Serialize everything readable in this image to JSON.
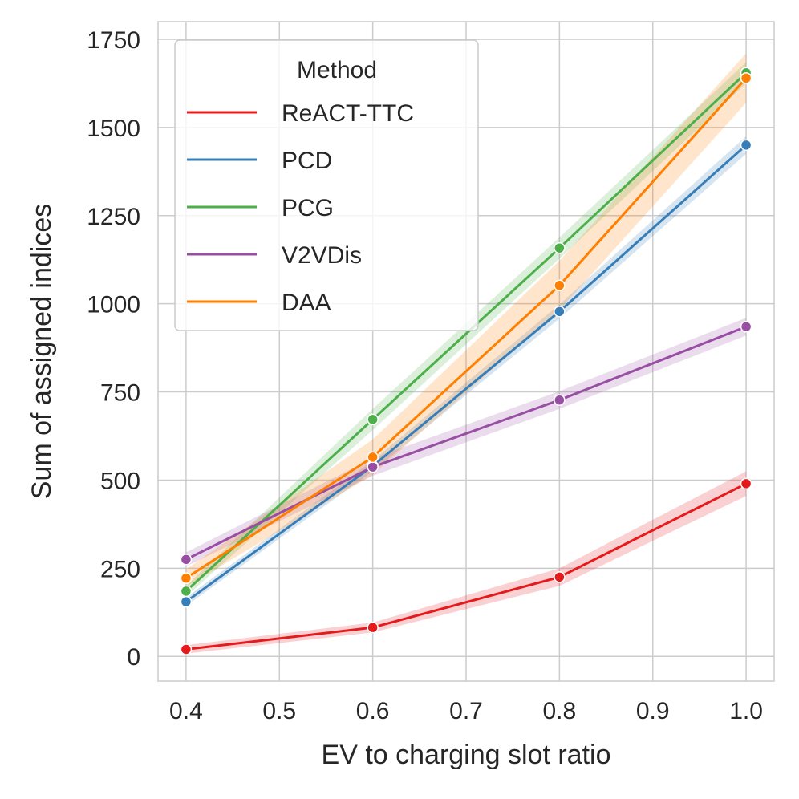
{
  "chart_data": {
    "type": "line",
    "xlabel": "EV to charging slot ratio",
    "ylabel": "Sum of assigned indices",
    "x": [
      0.4,
      0.6,
      0.8,
      1.0
    ],
    "xlim": [
      0.37,
      1.03
    ],
    "ylim": [
      -70,
      1800
    ],
    "x_ticks": [
      "0.4",
      "0.5",
      "0.6",
      "0.7",
      "0.8",
      "0.9",
      "1.0"
    ],
    "y_ticks": [
      "0",
      "250",
      "500",
      "750",
      "1000",
      "1250",
      "1500",
      "1750"
    ],
    "grid": true,
    "legend": {
      "title": "Method",
      "placement": "top-left"
    },
    "series": [
      {
        "name": "ReACT-TTC",
        "color": "#e41a1c",
        "values": [
          20,
          82,
          225,
          490
        ],
        "ci": [
          12,
          14,
          25,
          35
        ]
      },
      {
        "name": "PCD",
        "color": "#377eb8",
        "values": [
          155,
          540,
          978,
          1450
        ],
        "ci": [
          12,
          15,
          20,
          25
        ]
      },
      {
        "name": "PCG",
        "color": "#4daf4a",
        "values": [
          185,
          672,
          1158,
          1655
        ],
        "ci": [
          15,
          30,
          30,
          30
        ]
      },
      {
        "name": "V2VDis",
        "color": "#984ea3",
        "values": [
          275,
          537,
          727,
          935
        ],
        "ci": [
          20,
          25,
          25,
          25
        ]
      },
      {
        "name": "DAA",
        "color": "#ff7f00",
        "values": [
          222,
          565,
          1052,
          1640
        ],
        "ci": [
          25,
          50,
          70,
          70
        ]
      }
    ]
  }
}
